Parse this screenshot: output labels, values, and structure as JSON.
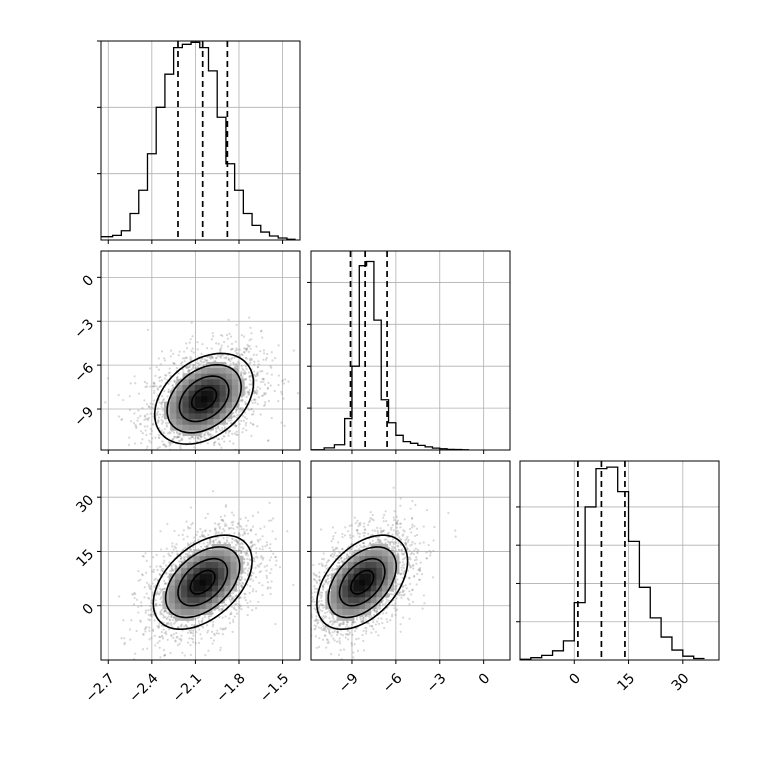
{
  "chart_data": {
    "type": "corner",
    "parameters": [
      {
        "range": [
          -2.75,
          -1.38
        ],
        "ticks": [
          -2.7,
          -2.4,
          -2.1,
          -1.8,
          -1.5
        ],
        "tick_labels": [
          "−2.7",
          "−2.4",
          "−2.1",
          "−1.8",
          "−1.5"
        ]
      },
      {
        "range": [
          -11.8,
          1.8
        ],
        "ticks": [
          -9,
          -6,
          -3,
          0
        ],
        "tick_labels": [
          "−9",
          "−6",
          "−3",
          "0"
        ]
      },
      {
        "range": [
          -15,
          40
        ],
        "ticks": [
          0,
          15,
          30
        ],
        "tick_labels": [
          "0",
          "15",
          "30"
        ]
      }
    ],
    "histograms": [
      {
        "param": 0,
        "bin_edges": [
          -2.75,
          -2.67,
          -2.61,
          -2.55,
          -2.49,
          -2.43,
          -2.37,
          -2.31,
          -2.25,
          -2.19,
          -2.13,
          -2.07,
          -2.01,
          -1.95,
          -1.89,
          -1.83,
          -1.77,
          -1.71,
          -1.65,
          -1.59,
          -1.53,
          -1.47,
          -1.41
        ],
        "counts": [
          5,
          7,
          14,
          40,
          75,
          130,
          200,
          250,
          290,
          295,
          298,
          290,
          255,
          185,
          115,
          75,
          40,
          22,
          12,
          6,
          3,
          1
        ],
        "quantiles": [
          -2.22,
          -2.05,
          -1.88
        ],
        "ylim": [
          0,
          300
        ],
        "yticks": [
          100,
          200,
          300
        ]
      },
      {
        "param": 1,
        "bin_edges": [
          -11.8,
          -10.9,
          -10.2,
          -9.5,
          -9.0,
          -8.5,
          -8.0,
          -7.5,
          -7.0,
          -6.5,
          -6.0,
          -5.5,
          -5.0,
          -4.5,
          -4.0,
          -3.5,
          -3.0,
          -2.5,
          -2.0,
          -1.5,
          -1.0
        ],
        "counts": [
          1,
          10,
          25,
          150,
          400,
          880,
          900,
          620,
          240,
          130,
          70,
          40,
          32,
          22,
          15,
          9,
          6,
          3,
          2,
          1
        ],
        "quantiles": [
          -9.1,
          -8.1,
          -6.6
        ],
        "ylim": [
          0,
          950
        ],
        "yticks": [
          200,
          400,
          600,
          800
        ]
      },
      {
        "param": 2,
        "bin_edges": [
          -15,
          -12,
          -9,
          -6,
          -3,
          0,
          3,
          6,
          9,
          12,
          15,
          18,
          21,
          24,
          27,
          30,
          33,
          36
        ],
        "counts": [
          1,
          3,
          6,
          12,
          25,
          75,
          200,
          250,
          252,
          220,
          155,
          95,
          55,
          30,
          13,
          5,
          2
        ],
        "quantiles": [
          1.0,
          7.5,
          14.0
        ],
        "ylim": [
          0,
          260
        ],
        "yticks": [
          50,
          100,
          150,
          200
        ]
      }
    ],
    "pairs": [
      {
        "x": 0,
        "y": 1,
        "mean": [
          -2.04,
          -8.3
        ],
        "std": [
          0.17,
          1.55
        ],
        "corr": 0.35,
        "contour_sigma": [
          0.5,
          1.0,
          1.5,
          2.0
        ]
      },
      {
        "x": 0,
        "y": 2,
        "mean": [
          -2.05,
          6.5
        ],
        "std": [
          0.17,
          6.5
        ],
        "corr": 0.45,
        "contour_sigma": [
          0.5,
          1.0,
          1.5,
          2.0
        ]
      },
      {
        "x": 1,
        "y": 2,
        "mean": [
          -8.3,
          6.5
        ],
        "std": [
          1.55,
          6.5
        ],
        "corr": 0.45,
        "contour_sigma": [
          0.5,
          1.0,
          1.5,
          2.0
        ]
      }
    ],
    "grid": true
  }
}
